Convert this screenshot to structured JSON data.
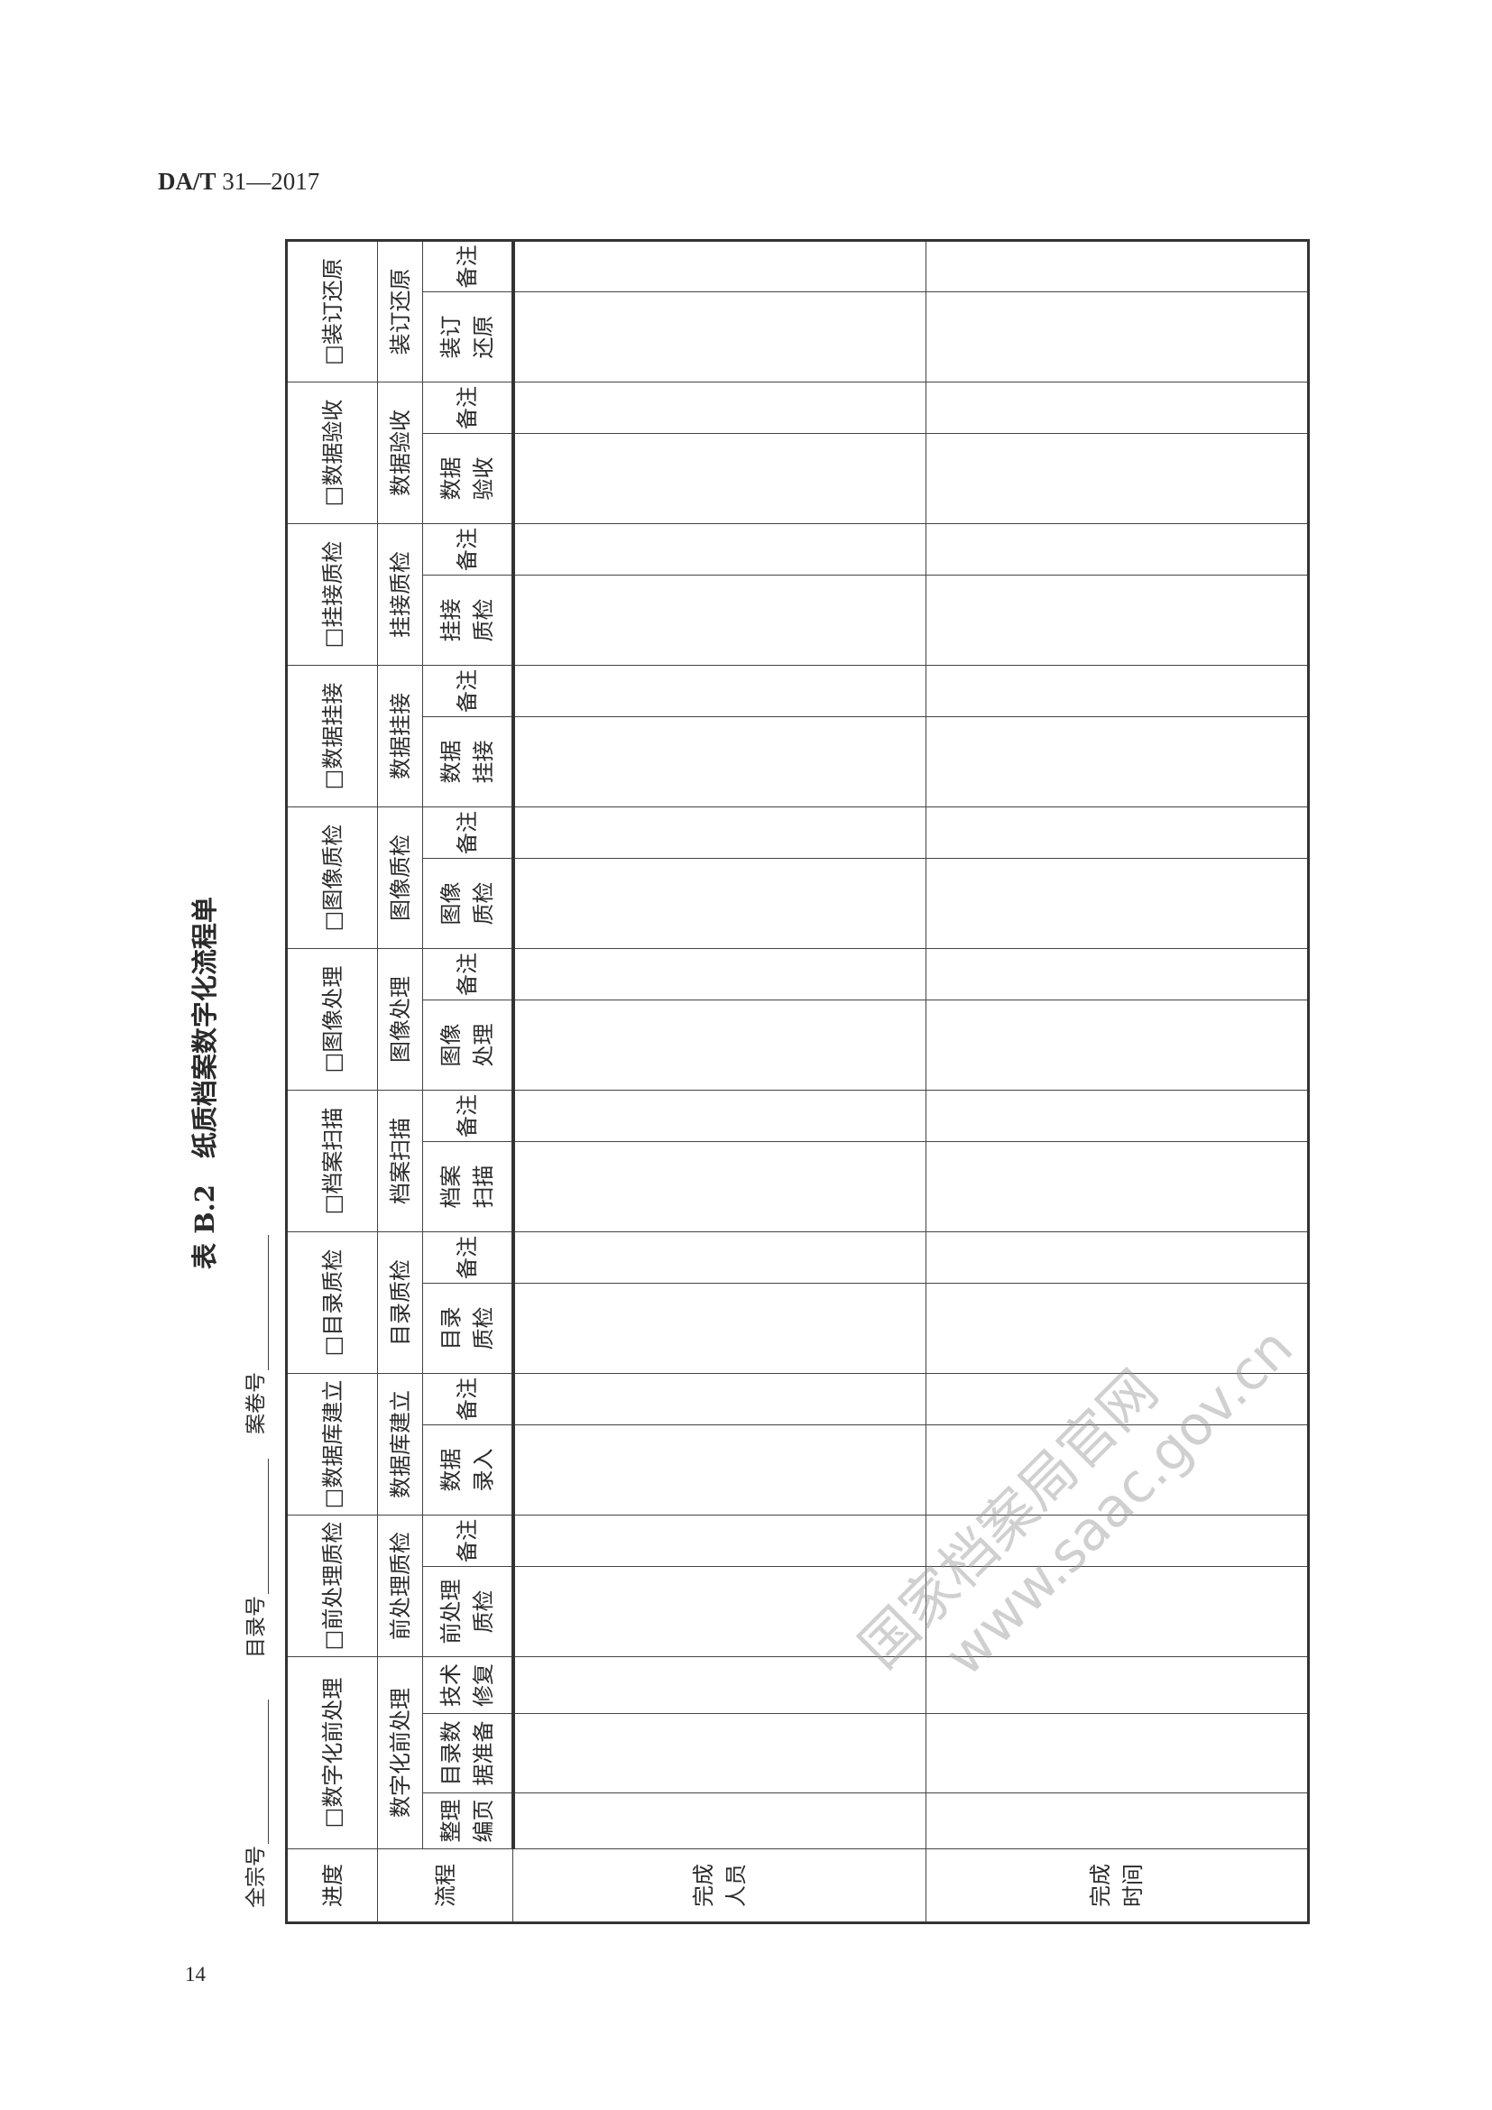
{
  "header": {
    "standard_prefix": "DA/T",
    "standard_number": "31—2017"
  },
  "page_number": "14",
  "title": "表 B.2　纸质档案数字化流程单",
  "fields": [
    {
      "label": "全宗号"
    },
    {
      "label": "目录号"
    },
    {
      "label": "案卷号"
    }
  ],
  "table": {
    "progress_label": "进度",
    "flow_label": "流程",
    "progress_options": [
      {
        "label": "□数字化前处理",
        "checked": false
      },
      {
        "label": "□前处理质检",
        "checked": false
      },
      {
        "label": "□数据库建立",
        "checked": false
      },
      {
        "label": "□目录质检",
        "checked": false
      },
      {
        "label": "□档案扫描",
        "checked": false
      },
      {
        "label": "□图像处理",
        "checked": false
      },
      {
        "label": "□图像质检",
        "checked": false
      },
      {
        "label": "□数据挂接",
        "checked": false
      },
      {
        "label": "□挂接质检",
        "checked": false
      },
      {
        "label": "□数据验收",
        "checked": false
      },
      {
        "label": "□装订还原",
        "checked": false
      }
    ],
    "groups": [
      {
        "name": "数字化前处理",
        "subs": [
          "整理\n编页",
          "目录数\n据准备",
          "技术\n修复"
        ]
      },
      {
        "name": "前处理质检",
        "subs": [
          "前处理\n质检",
          "备注"
        ]
      },
      {
        "name": "数据库建立",
        "subs": [
          "数据\n录入",
          "备注"
        ]
      },
      {
        "name": "目录质检",
        "subs": [
          "目录\n质检",
          "备注"
        ]
      },
      {
        "name": "档案扫描",
        "subs": [
          "档案\n扫描",
          "备注"
        ]
      },
      {
        "name": "图像处理",
        "subs": [
          "图像\n处理",
          "备注"
        ]
      },
      {
        "name": "图像质检",
        "subs": [
          "图像\n质检",
          "备注"
        ]
      },
      {
        "name": "数据挂接",
        "subs": [
          "数据\n挂接",
          "备注"
        ]
      },
      {
        "name": "挂接质检",
        "subs": [
          "挂接\n质检",
          "备注"
        ]
      },
      {
        "name": "数据验收",
        "subs": [
          "数据\n验收",
          "备注"
        ]
      },
      {
        "name": "装订还原",
        "subs": [
          "装订\n还原",
          "备注"
        ]
      }
    ],
    "rows": [
      {
        "label": "完成\n人员"
      },
      {
        "label": "完成\n时间"
      }
    ]
  },
  "watermark": {
    "line1": "国家档案局官网",
    "line2": "www.saac.gov.cn"
  }
}
